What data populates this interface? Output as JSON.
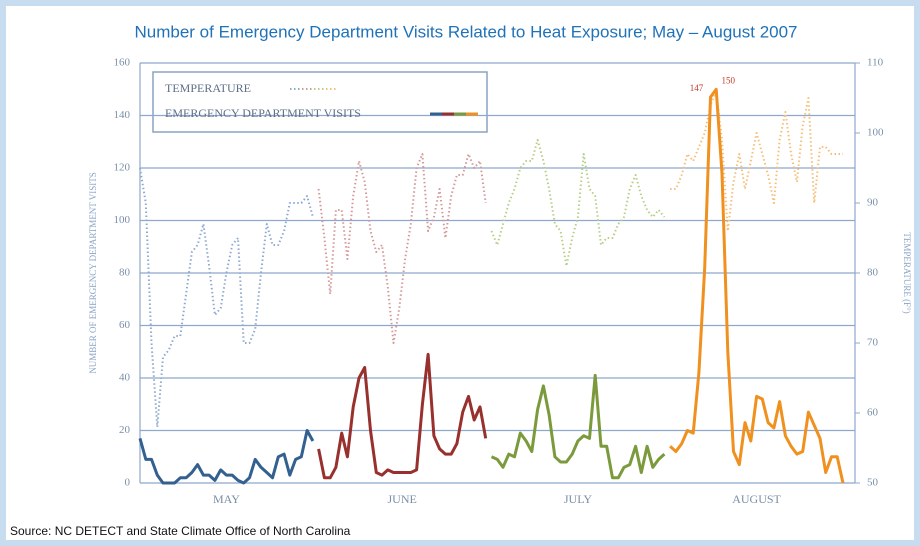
{
  "chart_data": {
    "type": "line",
    "title": "Number of Emergency Department Visits Related to Heat Exposure; May – August 2007",
    "source": "Source: NC DETECT and State Climate Office of North Carolina",
    "ylabel": "NUMBER OF EMERGENCY DEPARTMENT VISITS",
    "y2label": "TEMPERATURE (F°)",
    "categories": [
      "MAY",
      "JUNE",
      "JULY",
      "AUGUST"
    ],
    "ylim": [
      0,
      160
    ],
    "yticks": [
      0,
      20,
      40,
      60,
      80,
      100,
      120,
      140,
      160
    ],
    "y2lim": [
      50,
      110
    ],
    "y2ticks": [
      50,
      60,
      70,
      80,
      90,
      100,
      110
    ],
    "grid": true,
    "legend": "upper left",
    "annotations": [
      "147",
      "150"
    ],
    "series": [
      {
        "name": "TEMPERATURE",
        "axis": "y2",
        "style": "dotted",
        "color": [
          "#8eaad0",
          "#d39a9a",
          "#b5cf86",
          "#f5bf78"
        ],
        "values": [
          [
            95,
            90,
            70,
            58,
            68,
            69,
            71,
            71,
            77,
            83,
            84,
            87,
            81,
            74,
            75,
            80,
            84,
            85,
            70,
            70,
            72,
            80,
            87,
            84,
            84,
            86,
            90,
            90,
            90,
            91,
            88
          ],
          [
            92,
            85,
            77,
            89,
            89,
            82,
            91,
            96,
            93,
            86,
            83,
            84,
            78,
            70,
            75,
            82,
            87,
            95,
            97,
            86,
            88,
            92,
            85,
            91,
            94,
            94,
            97,
            95,
            96,
            90
          ],
          [
            86,
            84,
            87,
            90,
            92,
            95,
            96,
            96,
            99,
            96,
            92,
            87,
            86,
            81,
            85,
            88,
            97,
            92,
            91,
            84,
            85,
            85,
            87,
            88,
            92,
            94,
            91,
            89,
            88,
            89,
            88
          ],
          [
            92,
            92,
            94,
            97,
            96,
            98,
            100,
            104,
            106,
            99,
            86,
            93,
            97,
            92,
            96,
            100,
            97,
            94,
            90,
            99,
            103,
            97,
            93,
            101,
            105,
            90,
            98,
            98,
            97,
            97,
            97
          ]
        ]
      },
      {
        "name": "EMERGENCY DEPARTMENT VISITS",
        "style": "solid",
        "color": [
          "#33608f",
          "#98302e",
          "#7b9a3c",
          "#f0901f"
        ],
        "values": [
          [
            17,
            9,
            9,
            3,
            0,
            0,
            0,
            2,
            2,
            4,
            7,
            3,
            3,
            1,
            5,
            3,
            3,
            1,
            0,
            2,
            9,
            6,
            4,
            2,
            10,
            11,
            3,
            9,
            10,
            20,
            16
          ],
          [
            13,
            2,
            2,
            6,
            19,
            10,
            29,
            40,
            44,
            20,
            4,
            3,
            5,
            4,
            4,
            4,
            4,
            5,
            30,
            49,
            18,
            13,
            11,
            11,
            15,
            27,
            33,
            24,
            29,
            17
          ],
          [
            10,
            9,
            6,
            11,
            10,
            19,
            16,
            12,
            28,
            37,
            26,
            10,
            8,
            8,
            11,
            16,
            18,
            17,
            41,
            14,
            14,
            2,
            2,
            6,
            7,
            14,
            4,
            14,
            6,
            9,
            11
          ],
          [
            14,
            12,
            15,
            20,
            19,
            42,
            82,
            147,
            150,
            118,
            50,
            12,
            7,
            23,
            16,
            33,
            32,
            23,
            21,
            31,
            18,
            14,
            11,
            12,
            27,
            22,
            17,
            4,
            10,
            10,
            0
          ]
        ]
      }
    ]
  }
}
